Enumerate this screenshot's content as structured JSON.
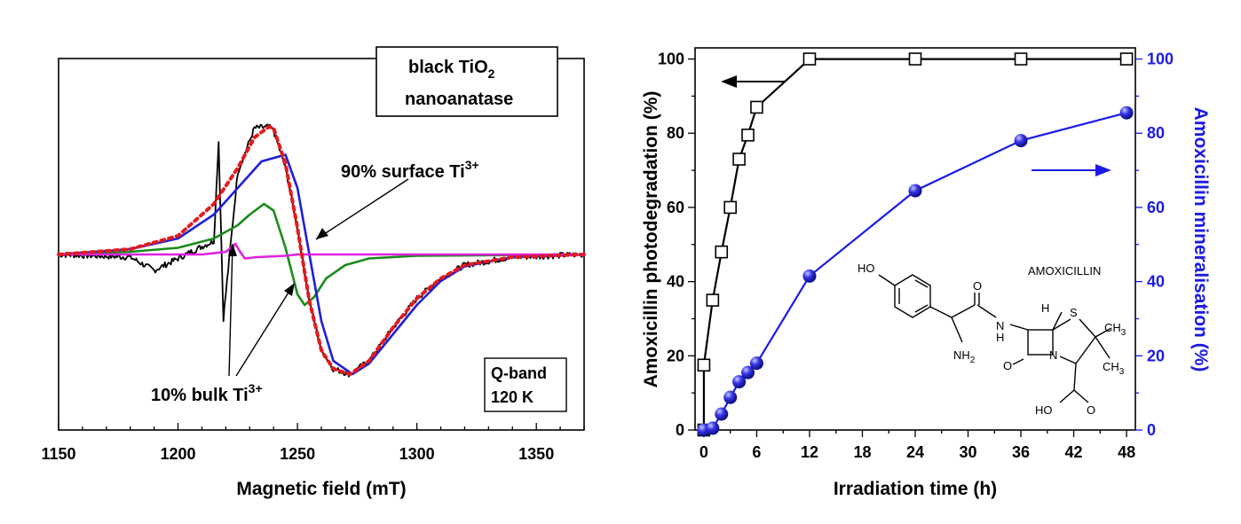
{
  "chart_data": [
    {
      "type": "line",
      "xlabel": "Magnetic field (mT)",
      "ylabel": "",
      "xlim": [
        1150,
        1370
      ],
      "xticks": [
        "1150",
        "1200",
        "1250",
        "1300",
        "1350"
      ],
      "grid": false,
      "legend": "none",
      "labels": {
        "title_line1": "black TiO",
        "title_sub": "2",
        "title_line2": "nanoanatase",
        "surface_text": "90% surface Ti",
        "surface_sup": "3+",
        "bulk_text": "10% bulk Ti",
        "bulk_sup": "3+",
        "band_line1": "Q-band",
        "band_line2": "120 K"
      },
      "series": [
        {
          "color": "#000000",
          "style": "noisy experimental",
          "x": [
            1150,
            1180,
            1190,
            1200,
            1210,
            1215,
            1217,
            1219,
            1225,
            1232,
            1238,
            1240,
            1245,
            1250,
            1255,
            1260,
            1265,
            1272,
            1280,
            1290,
            1300,
            1310,
            1320,
            1340,
            1370
          ],
          "y": [
            0.0,
            -0.02,
            -0.12,
            -0.03,
            0.06,
            0.1,
            0.85,
            -0.48,
            0.62,
            0.95,
            0.96,
            0.93,
            0.65,
            0.2,
            -0.35,
            -0.72,
            -0.86,
            -0.9,
            -0.8,
            -0.55,
            -0.33,
            -0.18,
            -0.08,
            -0.02,
            0.0
          ]
        },
        {
          "color": "#e41a1c",
          "style": "dotted fit",
          "x": [
            1150,
            1180,
            1200,
            1215,
            1225,
            1232,
            1238,
            1240,
            1245,
            1250,
            1255,
            1260,
            1265,
            1272,
            1280,
            1290,
            1300,
            1310,
            1320,
            1340,
            1370
          ],
          "y": [
            0.0,
            0.04,
            0.14,
            0.38,
            0.65,
            0.88,
            0.96,
            0.95,
            0.68,
            0.2,
            -0.35,
            -0.72,
            -0.86,
            -0.9,
            -0.8,
            -0.55,
            -0.33,
            -0.18,
            -0.08,
            -0.02,
            0.0
          ]
        },
        {
          "color": "#1f1fd6",
          "style": "solid",
          "x": [
            1150,
            1180,
            1200,
            1215,
            1225,
            1235,
            1245,
            1250,
            1255,
            1260,
            1265,
            1273,
            1280,
            1290,
            1300,
            1310,
            1320,
            1340,
            1370
          ],
          "y": [
            0.0,
            0.04,
            0.12,
            0.3,
            0.5,
            0.7,
            0.75,
            0.5,
            0.0,
            -0.5,
            -0.8,
            -0.9,
            -0.82,
            -0.6,
            -0.38,
            -0.2,
            -0.09,
            -0.02,
            0.0
          ]
        },
        {
          "color": "#1a8c1a",
          "style": "solid",
          "x": [
            1150,
            1180,
            1200,
            1215,
            1225,
            1230,
            1236,
            1240,
            1245,
            1250,
            1253,
            1257,
            1262,
            1270,
            1280,
            1300,
            1370
          ],
          "y": [
            0.0,
            0.02,
            0.05,
            0.12,
            0.22,
            0.3,
            0.38,
            0.33,
            0.05,
            -0.3,
            -0.38,
            -0.32,
            -0.18,
            -0.08,
            -0.03,
            -0.01,
            0.0
          ]
        },
        {
          "color": "#e020e0",
          "style": "solid",
          "x": [
            1150,
            1210,
            1220,
            1223,
            1224,
            1226,
            1228,
            1233,
            1245,
            1250,
            1370
          ],
          "y": [
            0.0,
            0.0,
            0.02,
            0.06,
            0.08,
            0.02,
            -0.03,
            -0.02,
            -0.01,
            0.0,
            0.0
          ]
        }
      ]
    },
    {
      "type": "line",
      "xlabel": "Irradiation time (h)",
      "ylabel": "Amoxicillin photodegradation (%)",
      "y2label": "Amoxicillin mineralisation (%)",
      "xlim": [
        -1,
        49
      ],
      "ylim": [
        0,
        103
      ],
      "xticks": [
        "0",
        "6",
        "12",
        "18",
        "24",
        "30",
        "36",
        "42",
        "48"
      ],
      "yticks": [
        "0",
        "20",
        "40",
        "60",
        "80",
        "100"
      ],
      "y2ticks": [
        "0",
        "20",
        "40",
        "60",
        "80",
        "100"
      ],
      "grid": false,
      "legend": "none",
      "molecule_label": "AMOXICILLIN",
      "molecule_atoms": [
        "HO",
        "O",
        "N",
        "H",
        "H",
        "S",
        "CH",
        "3",
        "CH",
        "3",
        "NH",
        "2",
        "O",
        "N",
        "HO",
        "O"
      ],
      "series": [
        {
          "axis": "left",
          "color": "#000000",
          "marker": "open-square",
          "x": [
            0,
            0,
            1,
            2,
            3,
            4,
            5,
            6,
            12,
            24,
            36,
            48
          ],
          "y": [
            0,
            17.5,
            35,
            48,
            60,
            73,
            79.5,
            87,
            100,
            100,
            100,
            100
          ]
        },
        {
          "axis": "right",
          "color": "#1a1ae6",
          "marker": "filled-circle",
          "x": [
            0,
            1,
            2,
            3,
            4,
            5,
            6,
            12,
            24,
            36,
            48
          ],
          "y": [
            0,
            0.5,
            4.3,
            8.8,
            13,
            15.5,
            18,
            41.5,
            64.5,
            78,
            85.5
          ]
        }
      ]
    }
  ]
}
